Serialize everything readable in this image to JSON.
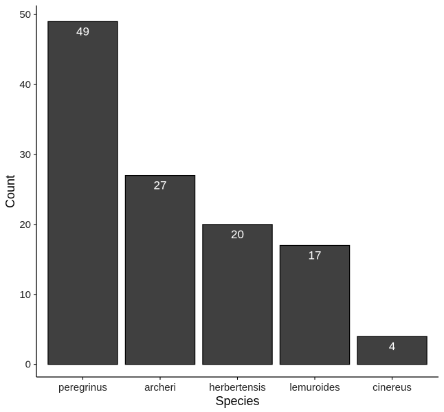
{
  "chart_data": {
    "type": "bar",
    "xlabel": "Species",
    "ylabel": "Count",
    "categories": [
      "peregrinus",
      "archeri",
      "herbertensis",
      "lemuroides",
      "cinereus"
    ],
    "values": [
      49,
      27,
      20,
      17,
      4
    ],
    "data_labels": [
      "49",
      "27",
      "20",
      "17",
      "4"
    ],
    "y_ticks": [
      0,
      10,
      20,
      30,
      40,
      50
    ],
    "ylim": [
      -1.8,
      51.3
    ],
    "grid": false,
    "legend": "none",
    "colors": {
      "bar_fill": "#404040",
      "bar_stroke": "#000000",
      "axis": "#000000",
      "label_text": "#ffffff"
    }
  }
}
